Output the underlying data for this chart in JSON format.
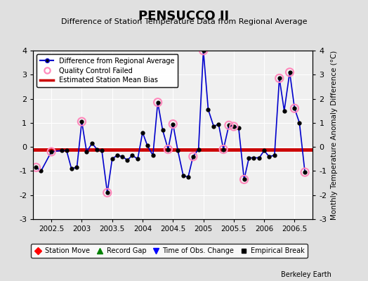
{
  "title": "PENSUCCO II",
  "subtitle": "Difference of Station Temperature Data from Regional Average",
  "ylabel": "Monthly Temperature Anomaly Difference (°C)",
  "xlabel_credit": "Berkeley Earth",
  "bias_line": -0.1,
  "xlim": [
    2002.2,
    2006.8
  ],
  "ylim": [
    -3,
    4
  ],
  "yticks": [
    -3,
    -2,
    -1,
    0,
    1,
    2,
    3,
    4
  ],
  "xticks": [
    2002.5,
    2003.0,
    2003.5,
    2004.0,
    2004.5,
    2005.0,
    2005.5,
    2006.0,
    2006.5
  ],
  "xtick_labels": [
    "2002.5",
    "2003",
    "2003.5",
    "2004",
    "2004.5",
    "2005",
    "2005.5",
    "2006",
    "2006.5"
  ],
  "bg_color": "#e0e0e0",
  "plot_bg_color": "#f0f0f0",
  "line_color": "#0000cc",
  "bias_color": "#cc0000",
  "qc_color": "#ff88bb",
  "data_x": [
    2002.25,
    2002.33,
    2002.5,
    2002.67,
    2002.75,
    2002.83,
    2002.92,
    2003.0,
    2003.08,
    2003.17,
    2003.25,
    2003.33,
    2003.42,
    2003.5,
    2003.58,
    2003.67,
    2003.75,
    2003.83,
    2003.92,
    2004.0,
    2004.08,
    2004.17,
    2004.25,
    2004.33,
    2004.42,
    2004.5,
    2004.58,
    2004.67,
    2004.75,
    2004.83,
    2004.92,
    2005.0,
    2005.08,
    2005.17,
    2005.25,
    2005.33,
    2005.42,
    2005.5,
    2005.58,
    2005.67,
    2005.75,
    2005.83,
    2005.92,
    2006.0,
    2006.08,
    2006.17,
    2006.25,
    2006.33,
    2006.42,
    2006.5,
    2006.58,
    2006.67
  ],
  "data_y": [
    -0.85,
    -1.0,
    -0.2,
    -0.15,
    -0.15,
    -0.9,
    -0.85,
    1.05,
    -0.2,
    0.15,
    -0.1,
    -0.15,
    -1.9,
    -0.5,
    -0.35,
    -0.4,
    -0.55,
    -0.35,
    -0.5,
    0.6,
    0.05,
    -0.35,
    1.85,
    0.7,
    -0.1,
    0.95,
    -0.15,
    -1.2,
    -1.25,
    -0.4,
    -0.1,
    4.0,
    1.55,
    0.85,
    0.95,
    -0.1,
    0.9,
    0.85,
    0.8,
    -1.35,
    -0.45,
    -0.45,
    -0.45,
    -0.15,
    -0.4,
    -0.35,
    2.85,
    1.5,
    3.1,
    1.6,
    1.0,
    -1.05
  ],
  "qc_failed_x": [
    2002.25,
    2002.5,
    2003.0,
    2003.42,
    2004.25,
    2004.42,
    2004.5,
    2004.83,
    2005.0,
    2005.33,
    2005.42,
    2005.5,
    2005.67,
    2006.25,
    2006.42,
    2006.5,
    2006.67
  ],
  "qc_failed_y": [
    -0.85,
    -0.2,
    1.05,
    -1.9,
    1.85,
    -0.1,
    0.95,
    -0.4,
    4.0,
    -0.1,
    0.9,
    0.85,
    -1.35,
    2.85,
    3.1,
    1.6,
    -1.05
  ]
}
